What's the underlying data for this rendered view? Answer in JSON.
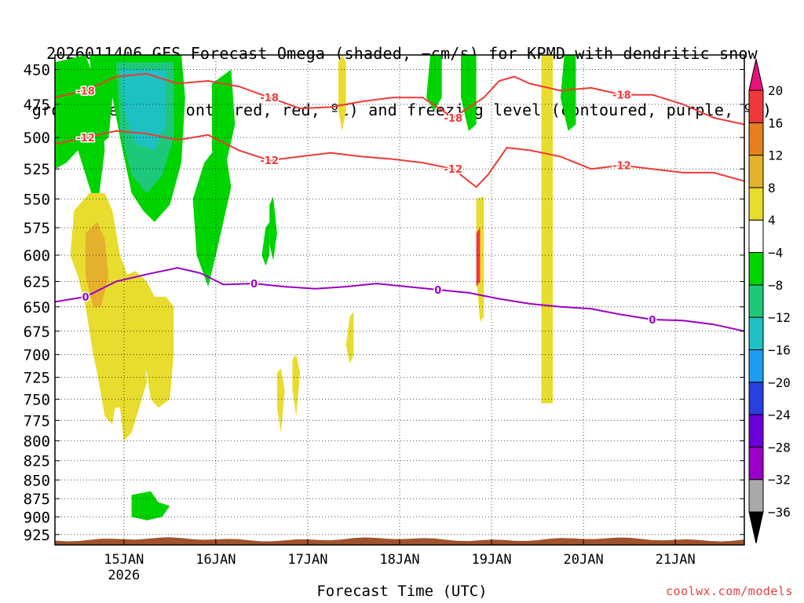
{
  "title": {
    "line1": "2026011406 GFS Forecast Omega (shaded, −cm/s) for KPMD with dendritic snow",
    "line2": "growth region (contoured, red, ºC) and freezing level (contoured, purple, ºC)"
  },
  "credit": "coolwx.com/models",
  "chart_data": {
    "type": "heatmap",
    "xlabel": "Forecast Time (UTC)",
    "ylabel": "",
    "x_tick_labels": [
      "15JAN",
      "16JAN",
      "17JAN",
      "18JAN",
      "19JAN",
      "20JAN",
      "21JAN"
    ],
    "x_tick_sublabel": "2026",
    "x_tick_hours": [
      18,
      42,
      66,
      90,
      114,
      138,
      162
    ],
    "xlim_hours_from_init": [
      0,
      180
    ],
    "y_levels_hPa": [
      450,
      475,
      500,
      525,
      550,
      575,
      600,
      625,
      650,
      675,
      700,
      725,
      750,
      775,
      800,
      825,
      850,
      875,
      900,
      925
    ],
    "ylim_hPa": [
      440,
      940
    ],
    "y_scale": "log-pressure",
    "grid": "dotted",
    "colorbar": {
      "levels": [
        -36,
        -32,
        -28,
        -24,
        -20,
        -16,
        -12,
        -8,
        -4,
        4,
        8,
        12,
        16,
        20
      ],
      "tick_labels": [
        "20",
        "16",
        "12",
        "8",
        "4",
        "−4",
        "−8",
        "−12",
        "−16",
        "−20",
        "−24",
        "−28",
        "−32",
        "−36"
      ],
      "colors": [
        "#000000",
        "#a9a9a9",
        "#9a00c6",
        "#6b00d6",
        "#2a3fe0",
        "#1e9cf2",
        "#1ec1c1",
        "#1ec87a",
        "#00d400",
        "#ffffff",
        "#e8dc2e",
        "#e5b12c",
        "#e58020",
        "#ee3a36",
        "#e8127a"
      ]
    },
    "shading_regions": [
      {
        "color": "#00d400",
        "points": [
          [
            0,
            445
          ],
          [
            8,
            440
          ],
          [
            12,
            470
          ],
          [
            13,
            510
          ],
          [
            11,
            560
          ],
          [
            9,
            540
          ],
          [
            6,
            510
          ],
          [
            3,
            520
          ],
          [
            0,
            525
          ]
        ]
      },
      {
        "color": "#00d400",
        "points": [
          [
            9,
            440
          ],
          [
            16,
            440
          ],
          [
            15,
            470
          ],
          [
            14,
            500
          ],
          [
            12,
            505
          ],
          [
            10,
            470
          ]
        ]
      },
      {
        "color": "#00d400",
        "points": [
          [
            14,
            440
          ],
          [
            33,
            440
          ],
          [
            34,
            470
          ],
          [
            33,
            520
          ],
          [
            30,
            555
          ],
          [
            26,
            570
          ],
          [
            23,
            560
          ],
          [
            20,
            545
          ],
          [
            17,
            500
          ],
          [
            15,
            470
          ]
        ]
      },
      {
        "color": "#00d400",
        "points": [
          [
            39,
            520
          ],
          [
            44,
            500
          ],
          [
            46,
            540
          ],
          [
            42,
            600
          ],
          [
            40,
            630
          ],
          [
            37,
            600
          ],
          [
            36,
            550
          ]
        ]
      },
      {
        "color": "#00d400",
        "points": [
          [
            41,
            460
          ],
          [
            46,
            450
          ],
          [
            47,
            490
          ],
          [
            44,
            530
          ],
          [
            41,
            510
          ]
        ]
      },
      {
        "color": "#1ec87a",
        "points": [
          [
            16,
            445
          ],
          [
            31,
            445
          ],
          [
            31,
            500
          ],
          [
            28,
            530
          ],
          [
            24,
            545
          ],
          [
            20,
            530
          ],
          [
            17,
            495
          ]
        ]
      },
      {
        "color": "#1ec1c1",
        "points": [
          [
            17,
            450
          ],
          [
            29,
            450
          ],
          [
            29,
            490
          ],
          [
            26,
            510
          ],
          [
            21,
            505
          ],
          [
            18,
            480
          ]
        ]
      },
      {
        "color": "#00d400",
        "points": [
          [
            56,
            555
          ],
          [
            57,
            548
          ],
          [
            58,
            580
          ],
          [
            57,
            605
          ],
          [
            56,
            590
          ]
        ]
      },
      {
        "color": "#00d400",
        "points": [
          [
            55,
            575
          ],
          [
            56,
            570
          ],
          [
            56,
            600
          ],
          [
            55,
            610
          ],
          [
            54,
            600
          ]
        ]
      },
      {
        "color": "#00d400",
        "points": [
          [
            98,
            440
          ],
          [
            101,
            440
          ],
          [
            101,
            470
          ],
          [
            99,
            480
          ],
          [
            97,
            470
          ]
        ]
      },
      {
        "color": "#00d400",
        "points": [
          [
            106,
            440
          ],
          [
            110,
            440
          ],
          [
            110,
            490
          ],
          [
            108,
            495
          ],
          [
            106,
            470
          ]
        ]
      },
      {
        "color": "#00d400",
        "points": [
          [
            133,
            440
          ],
          [
            136,
            440
          ],
          [
            136,
            490
          ],
          [
            134,
            495
          ],
          [
            132,
            470
          ]
        ]
      },
      {
        "color": "#00d400",
        "points": [
          [
            20,
            870
          ],
          [
            25,
            865
          ],
          [
            27,
            880
          ],
          [
            30,
            885
          ],
          [
            28,
            900
          ],
          [
            24,
            905
          ],
          [
            20,
            900
          ]
        ]
      },
      {
        "color": "#e8dc2e",
        "points": [
          [
            5,
            560
          ],
          [
            9,
            545
          ],
          [
            13,
            545
          ],
          [
            15,
            560
          ],
          [
            17,
            600
          ],
          [
            19,
            620
          ],
          [
            20,
            650
          ],
          [
            22,
            660
          ],
          [
            23,
            690
          ],
          [
            24,
            730
          ],
          [
            22,
            760
          ],
          [
            20,
            790
          ],
          [
            18,
            800
          ],
          [
            17,
            760
          ],
          [
            15,
            760
          ],
          [
            12,
            740
          ],
          [
            10,
            700
          ],
          [
            8,
            650
          ],
          [
            6,
            620
          ],
          [
            4,
            600
          ]
        ]
      },
      {
        "color": "#e8dc2e",
        "points": [
          [
            18,
            620
          ],
          [
            21,
            615
          ],
          [
            24,
            625
          ],
          [
            26,
            640
          ],
          [
            29,
            640
          ],
          [
            31,
            650
          ],
          [
            31,
            700
          ],
          [
            30,
            750
          ],
          [
            27,
            760
          ],
          [
            25,
            750
          ],
          [
            24,
            720
          ],
          [
            22,
            700
          ],
          [
            20,
            660
          ]
        ]
      },
      {
        "color": "#e8dc2e",
        "points": [
          [
            10,
            640
          ],
          [
            13,
            620
          ],
          [
            16,
            640
          ],
          [
            17,
            700
          ],
          [
            16,
            750
          ],
          [
            15,
            780
          ],
          [
            13,
            770
          ],
          [
            11,
            720
          ],
          [
            10,
            680
          ]
        ]
      },
      {
        "color": "#e5b12c",
        "points": [
          [
            8,
            580
          ],
          [
            11,
            570
          ],
          [
            13,
            585
          ],
          [
            14,
            620
          ],
          [
            12,
            650
          ],
          [
            10,
            650
          ],
          [
            8,
            620
          ]
        ]
      },
      {
        "color": "#e8dc2e",
        "points": [
          [
            58,
            720
          ],
          [
            59,
            715
          ],
          [
            60,
            740
          ],
          [
            59,
            790
          ],
          [
            58,
            760
          ]
        ]
      },
      {
        "color": "#e8dc2e",
        "points": [
          [
            62,
            705
          ],
          [
            63,
            700
          ],
          [
            64,
            720
          ],
          [
            63,
            770
          ],
          [
            62,
            740
          ]
        ]
      },
      {
        "color": "#e8dc2e",
        "points": [
          [
            74,
            445
          ],
          [
            75,
            440
          ],
          [
            76,
            445
          ],
          [
            76,
            480
          ],
          [
            75,
            495
          ],
          [
            74,
            480
          ]
        ]
      },
      {
        "color": "#e8dc2e",
        "points": [
          [
            77,
            660
          ],
          [
            78,
            655
          ],
          [
            78,
            700
          ],
          [
            77,
            710
          ],
          [
            76,
            690
          ]
        ]
      },
      {
        "color": "#e8dc2e",
        "points": [
          [
            127,
            440
          ],
          [
            130,
            440
          ],
          [
            130,
            755
          ],
          [
            127,
            755
          ]
        ]
      },
      {
        "color": "#e8dc2e",
        "points": [
          [
            110,
            550
          ],
          [
            112,
            548
          ],
          [
            112,
            660
          ],
          [
            111,
            665
          ],
          [
            110,
            620
          ]
        ]
      },
      {
        "color": "#ee3a36",
        "points": [
          [
            110,
            580
          ],
          [
            111,
            575
          ],
          [
            111,
            625
          ],
          [
            110,
            630
          ]
        ]
      }
    ],
    "contours": [
      {
        "name": "-18",
        "color": "#ee3a36",
        "label": "-18",
        "points": [
          [
            0,
            470
          ],
          [
            8,
            465
          ],
          [
            16,
            455
          ],
          [
            24,
            453
          ],
          [
            32,
            460
          ],
          [
            40,
            458
          ],
          [
            48,
            462
          ],
          [
            56,
            470
          ],
          [
            64,
            478
          ],
          [
            72,
            477
          ],
          [
            80,
            473
          ],
          [
            88,
            470
          ],
          [
            96,
            470
          ],
          [
            104,
            485
          ],
          [
            112,
            470
          ],
          [
            116,
            458
          ],
          [
            120,
            455
          ],
          [
            124,
            460
          ],
          [
            132,
            465
          ],
          [
            140,
            463
          ],
          [
            148,
            468
          ],
          [
            156,
            468
          ],
          [
            164,
            475
          ],
          [
            172,
            485
          ],
          [
            180,
            490
          ]
        ]
      },
      {
        "name": "-12",
        "color": "#ee3a36",
        "label": "-12",
        "points": [
          [
            0,
            505
          ],
          [
            8,
            500
          ],
          [
            16,
            495
          ],
          [
            24,
            497
          ],
          [
            32,
            502
          ],
          [
            40,
            498
          ],
          [
            48,
            510
          ],
          [
            56,
            518
          ],
          [
            64,
            515
          ],
          [
            72,
            512
          ],
          [
            80,
            515
          ],
          [
            88,
            517
          ],
          [
            96,
            520
          ],
          [
            104,
            525
          ],
          [
            110,
            540
          ],
          [
            113,
            530
          ],
          [
            118,
            508
          ],
          [
            124,
            510
          ],
          [
            132,
            515
          ],
          [
            140,
            525
          ],
          [
            148,
            522
          ],
          [
            156,
            525
          ],
          [
            164,
            528
          ],
          [
            172,
            528
          ],
          [
            180,
            535
          ]
        ]
      },
      {
        "name": "0",
        "color": "#9a00c6",
        "label": "0",
        "points": [
          [
            0,
            645
          ],
          [
            8,
            640
          ],
          [
            16,
            625
          ],
          [
            24,
            618
          ],
          [
            32,
            612
          ],
          [
            38,
            617
          ],
          [
            44,
            628
          ],
          [
            52,
            627
          ],
          [
            60,
            630
          ],
          [
            68,
            632
          ],
          [
            76,
            630
          ],
          [
            84,
            627
          ],
          [
            92,
            630
          ],
          [
            100,
            633
          ],
          [
            108,
            636
          ],
          [
            116,
            642
          ],
          [
            124,
            647
          ],
          [
            132,
            650
          ],
          [
            140,
            652
          ],
          [
            148,
            658
          ],
          [
            156,
            663
          ],
          [
            164,
            664
          ],
          [
            172,
            668
          ],
          [
            180,
            675
          ]
        ]
      }
    ],
    "terrain": {
      "color": "#a0522d",
      "top_hPa": 932
    }
  }
}
